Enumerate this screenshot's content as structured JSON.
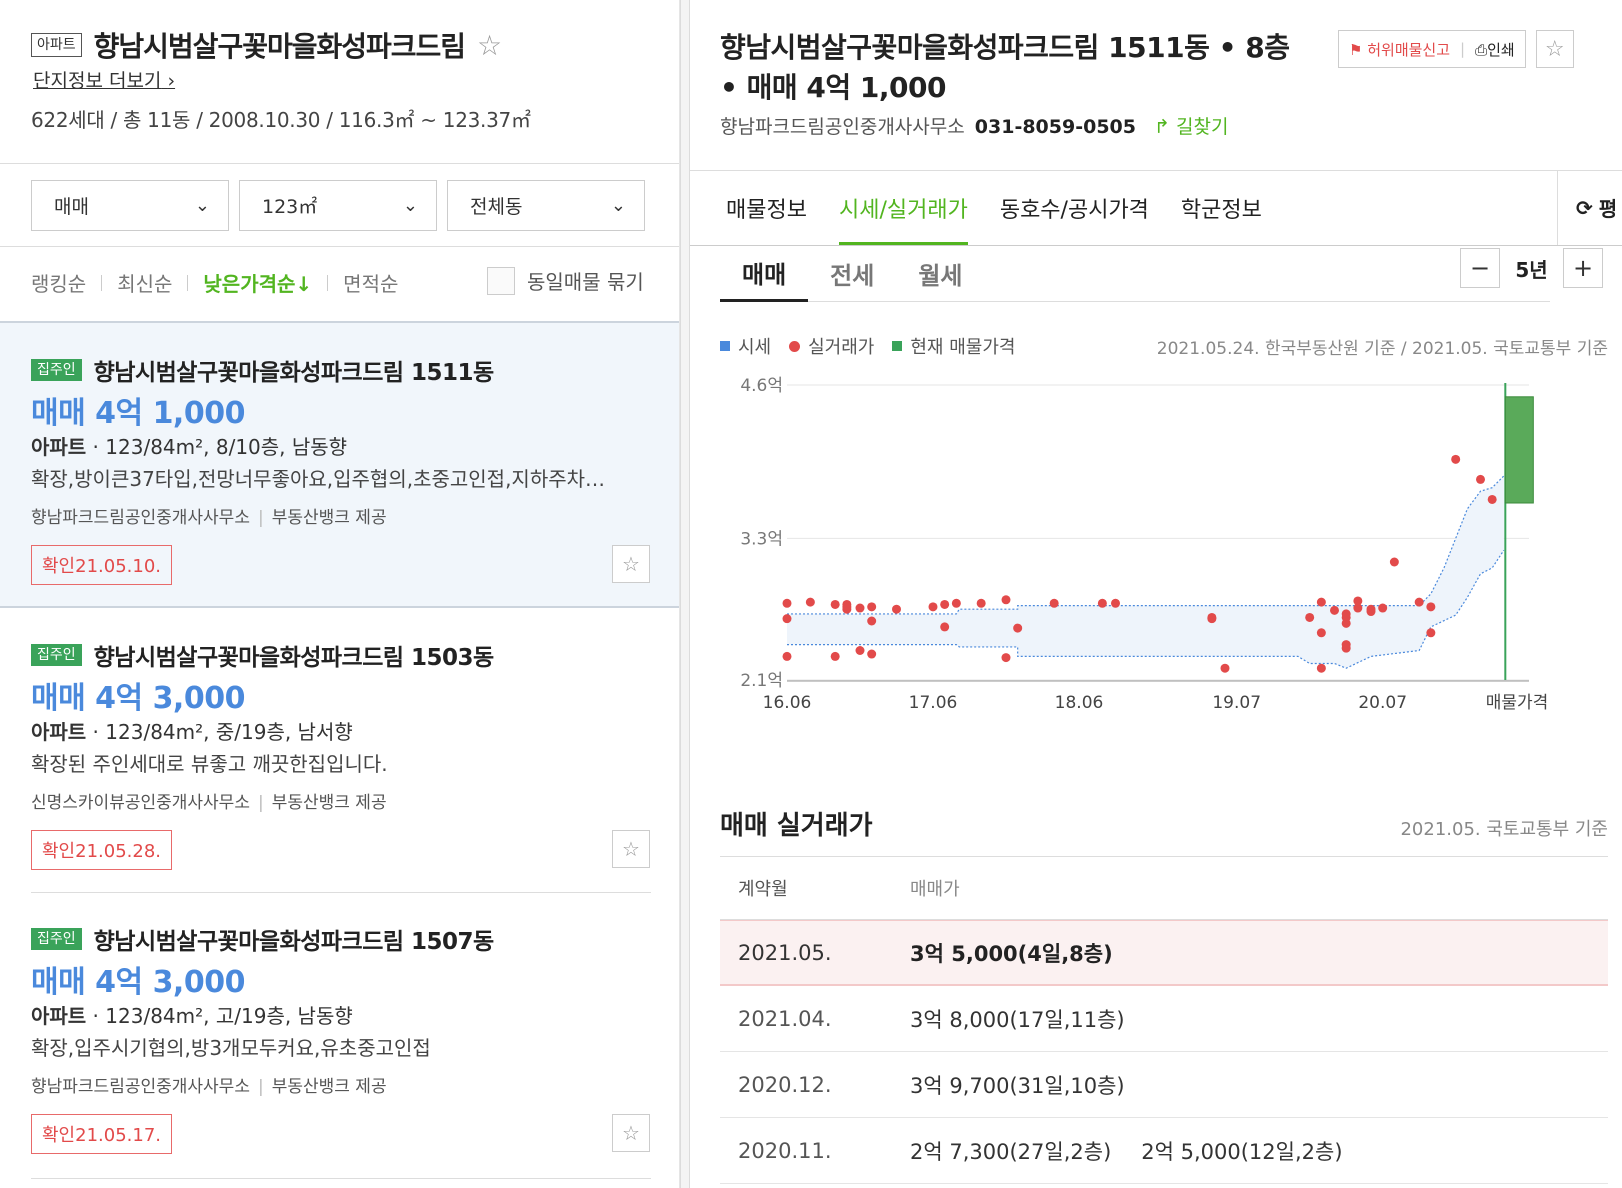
{
  "complex": {
    "type_tag": "아파트",
    "name": "향남시범살구꽃마을화성파크드림",
    "more_link": "단지정보 더보기",
    "info": "622세대 / 총 11동 / 2008.10.30 / 116.3㎡ ~ 123.37㎡"
  },
  "filters": [
    {
      "label": "매매"
    },
    {
      "label": "123㎡"
    },
    {
      "label": "전체동"
    }
  ],
  "sorts": {
    "ranking": "랭킹순",
    "latest": "최신순",
    "low_price": "낮은가격순↓",
    "area": "면적순",
    "group_same": "동일매물 묶기"
  },
  "listings": [
    {
      "badge": "집주인",
      "name": "향남시범살구꽃마을화성파크드림 1511동",
      "price": "매매 4억 1,000",
      "type": "아파트",
      "spec": "123/84m², 8/10층, 남동향",
      "desc": "확장,방이큰37타입,전망너무좋아요,입주협의,초중고인접,지하주차…",
      "agent": "향남파크드림공인중개사사무소",
      "provider": "부동산뱅크 제공",
      "confirm": "확인21.05.10."
    },
    {
      "badge": "집주인",
      "name": "향남시범살구꽃마을화성파크드림 1503동",
      "price": "매매 4억 3,000",
      "type": "아파트",
      "spec": "123/84m², 중/19층, 남서향",
      "desc": "확장된 주인세대로 뷰좋고 깨끗한집입니다.",
      "agent": "신명스카이뷰공인중개사사무소",
      "provider": "부동산뱅크 제공",
      "confirm": "확인21.05.28."
    },
    {
      "badge": "집주인",
      "name": "향남시범살구꽃마을화성파크드림 1507동",
      "price": "매매 4억 3,000",
      "type": "아파트",
      "spec": "123/84m², 고/19층, 남동향",
      "desc": "확장,입주시기협의,방3개모두커요,유초중고인접",
      "agent": "향남파크드림공인중개사사무소",
      "provider": "부동산뱅크 제공",
      "confirm": "확인21.05.17."
    }
  ],
  "detail": {
    "title": "향남시범살구꽃마을화성파크드림 1511동 • 8층 • 매매 4억 1,000",
    "agent": "향남파크드림공인중개사사무소",
    "phone": "031-8059-0505",
    "directions": "길찾기",
    "fake_report": "허위매물신고",
    "print": "인쇄"
  },
  "tabs": [
    "매물정보",
    "시세/실거래가",
    "동호수/공시가격",
    "학군정보"
  ],
  "reload_label": "평",
  "subtabs": [
    "매매",
    "전세",
    "월세"
  ],
  "period": {
    "minus": "−",
    "value": "5년",
    "plus": "+"
  },
  "legend": [
    {
      "label": "시세",
      "color": "#4a89dc"
    },
    {
      "label": "실거래가",
      "color": "#e24a4a"
    },
    {
      "label": "현재 매물가격",
      "color": "#3aa35a"
    }
  ],
  "basis": "2021.05.24. 한국부동산원 기준 / 2021.05. 국토교통부 기준",
  "chart_data": {
    "type": "scatter",
    "y_tick_labels": [
      "4.6억",
      "3.3억",
      "2.1억"
    ],
    "y_ticks": [
      4.6,
      3.3,
      2.1
    ],
    "ylim": [
      2.1,
      4.6
    ],
    "x_tick_labels": [
      "16.06",
      "17.06",
      "18.06",
      "19.07",
      "20.07",
      "매물가격"
    ],
    "x_ticks": [
      2016.42,
      2017.42,
      2018.42,
      2019.5,
      2020.5
    ],
    "xlim": [
      2016.42,
      2021.42
    ],
    "series": [
      {
        "name": "실거래가",
        "points": [
          [
            2016.42,
            2.75
          ],
          [
            2016.42,
            2.62
          ],
          [
            2016.42,
            2.3
          ],
          [
            2016.58,
            2.76
          ],
          [
            2016.75,
            2.74
          ],
          [
            2016.75,
            2.3
          ],
          [
            2016.83,
            2.74
          ],
          [
            2016.83,
            2.72
          ],
          [
            2016.83,
            2.7
          ],
          [
            2016.92,
            2.71
          ],
          [
            2016.92,
            2.35
          ],
          [
            2017.0,
            2.72
          ],
          [
            2017.0,
            2.6
          ],
          [
            2017.0,
            2.32
          ],
          [
            2017.17,
            2.7
          ],
          [
            2017.42,
            2.72
          ],
          [
            2017.5,
            2.74
          ],
          [
            2017.58,
            2.75
          ],
          [
            2017.5,
            2.55
          ],
          [
            2017.75,
            2.75
          ],
          [
            2017.92,
            2.78
          ],
          [
            2018.0,
            2.54
          ],
          [
            2017.92,
            2.29
          ],
          [
            2018.25,
            2.75
          ],
          [
            2018.58,
            2.75
          ],
          [
            2018.67,
            2.75
          ],
          [
            2019.33,
            2.63
          ],
          [
            2019.33,
            2.62
          ],
          [
            2019.42,
            2.2
          ],
          [
            2020.0,
            2.63
          ],
          [
            2020.08,
            2.76
          ],
          [
            2020.08,
            2.5
          ],
          [
            2020.08,
            2.2
          ],
          [
            2020.17,
            2.69
          ],
          [
            2020.25,
            2.66
          ],
          [
            2020.25,
            2.63
          ],
          [
            2020.25,
            2.58
          ],
          [
            2020.25,
            2.4
          ],
          [
            2020.25,
            2.37
          ],
          [
            2020.33,
            2.77
          ],
          [
            2020.33,
            2.71
          ],
          [
            2020.42,
            2.7
          ],
          [
            2020.42,
            2.68
          ],
          [
            2020.5,
            2.71
          ],
          [
            2020.58,
            3.1
          ],
          [
            2020.75,
            2.76
          ],
          [
            2020.83,
            2.72
          ],
          [
            2020.83,
            2.5
          ],
          [
            2021.0,
            3.97
          ],
          [
            2021.17,
            3.8
          ],
          [
            2021.25,
            3.63
          ]
        ]
      },
      {
        "name": "시세",
        "upper": [
          [
            2016.42,
            2.66
          ],
          [
            2017.58,
            2.66
          ],
          [
            2017.6,
            2.7
          ],
          [
            2018.0,
            2.7
          ],
          [
            2018.0,
            2.73
          ],
          [
            2020.75,
            2.73
          ],
          [
            2020.83,
            2.83
          ],
          [
            2020.92,
            3.05
          ],
          [
            2021.0,
            3.3
          ],
          [
            2021.08,
            3.55
          ],
          [
            2021.17,
            3.7
          ],
          [
            2021.25,
            3.73
          ],
          [
            2021.33,
            3.83
          ]
        ],
        "lower": [
          [
            2016.42,
            2.4
          ],
          [
            2017.58,
            2.4
          ],
          [
            2017.6,
            2.38
          ],
          [
            2018.0,
            2.38
          ],
          [
            2018.0,
            2.3
          ],
          [
            2019.92,
            2.3
          ],
          [
            2020.0,
            2.24
          ],
          [
            2020.17,
            2.24
          ],
          [
            2020.25,
            2.2
          ],
          [
            2020.42,
            2.3
          ],
          [
            2020.75,
            2.35
          ],
          [
            2020.83,
            2.55
          ],
          [
            2021.0,
            2.65
          ],
          [
            2021.08,
            2.8
          ],
          [
            2021.17,
            3.0
          ],
          [
            2021.25,
            3.05
          ],
          [
            2021.33,
            3.2
          ]
        ]
      },
      {
        "name": "현재 매물가격",
        "range": [
          3.6,
          4.5
        ]
      }
    ]
  },
  "deals": {
    "title": "매매 실거래가",
    "basis": "2021.05. 국토교통부 기준",
    "headers": [
      "계약월",
      "매매가"
    ],
    "rows": [
      {
        "month": "2021.05.",
        "prices": [
          "3억 5,000(4일,8층)"
        ]
      },
      {
        "month": "2021.04.",
        "prices": [
          "3억 8,000(17일,11층)"
        ]
      },
      {
        "month": "2020.12.",
        "prices": [
          "3억 9,700(31일,10층)"
        ]
      },
      {
        "month": "2020.11.",
        "prices": [
          "2억 7,300(27일,2층)",
          "2억 5,000(12일,2층)"
        ]
      }
    ]
  }
}
